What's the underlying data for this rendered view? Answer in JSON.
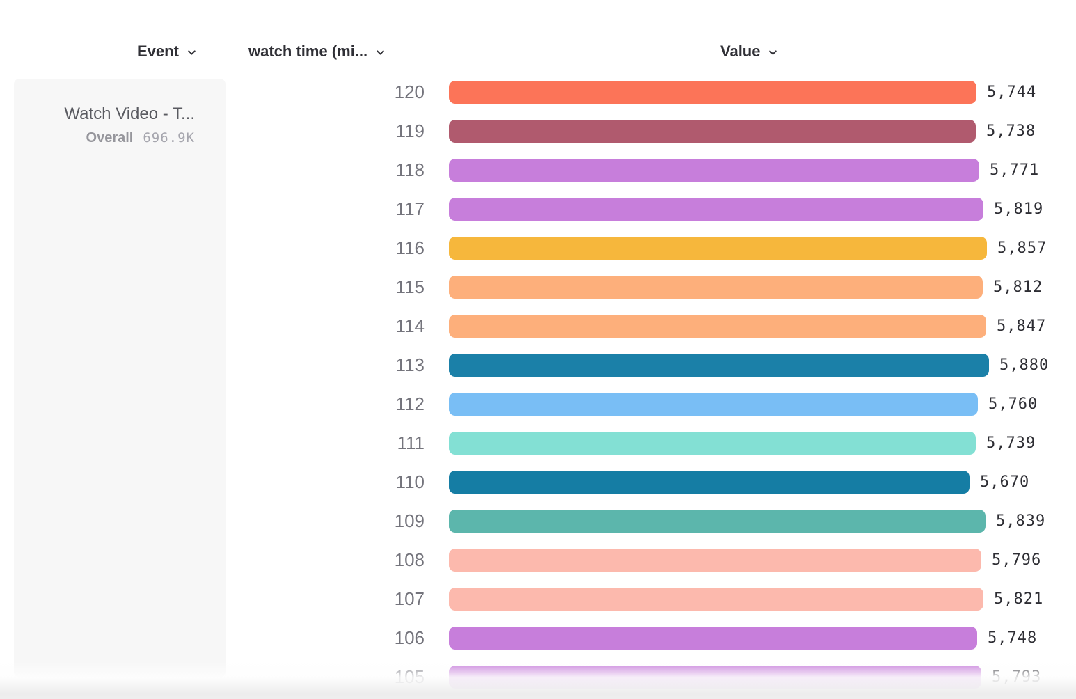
{
  "header": {
    "columns": [
      {
        "label": "Event",
        "icon": "chevron-down"
      },
      {
        "label": "watch time (mi...",
        "icon": "chevron-down"
      },
      {
        "label": "Value",
        "icon": "chevron-down"
      }
    ]
  },
  "event_card": {
    "title": "Watch Video - T...",
    "metric_label": "Overall",
    "metric_value": "696.9K"
  },
  "chart_data": {
    "type": "bar",
    "orientation": "horizontal",
    "title": "",
    "xlabel": "Value",
    "ylabel": "watch time (mi...)",
    "axis_max": 5880,
    "grid": false,
    "legend": "none",
    "rows": [
      {
        "category": "120",
        "value": 5744,
        "label": "5,744",
        "color": "#FC7458"
      },
      {
        "category": "119",
        "value": 5738,
        "label": "5,738",
        "color": "#B05A6E"
      },
      {
        "category": "118",
        "value": 5771,
        "label": "5,771",
        "color": "#C77EDB"
      },
      {
        "category": "117",
        "value": 5819,
        "label": "5,819",
        "color": "#C77EDB"
      },
      {
        "category": "116",
        "value": 5857,
        "label": "5,857",
        "color": "#F6B73C"
      },
      {
        "category": "115",
        "value": 5812,
        "label": "5,812",
        "color": "#FDAF7B"
      },
      {
        "category": "114",
        "value": 5847,
        "label": "5,847",
        "color": "#FDAF7B"
      },
      {
        "category": "113",
        "value": 5880,
        "label": "5,880",
        "color": "#1B80A8"
      },
      {
        "category": "112",
        "value": 5760,
        "label": "5,760",
        "color": "#79BEF5"
      },
      {
        "category": "111",
        "value": 5739,
        "label": "5,739",
        "color": "#83E0D4"
      },
      {
        "category": "110",
        "value": 5670,
        "label": "5,670",
        "color": "#157DA4"
      },
      {
        "category": "109",
        "value": 5839,
        "label": "5,839",
        "color": "#5CB6AC"
      },
      {
        "category": "108",
        "value": 5796,
        "label": "5,796",
        "color": "#FCB9AD"
      },
      {
        "category": "107",
        "value": 5821,
        "label": "5,821",
        "color": "#FCB9AD"
      },
      {
        "category": "106",
        "value": 5748,
        "label": "5,748",
        "color": "#C77EDB"
      },
      {
        "category": "105",
        "value": 5793,
        "label": "5,793",
        "color": "#C77EDB"
      }
    ]
  }
}
